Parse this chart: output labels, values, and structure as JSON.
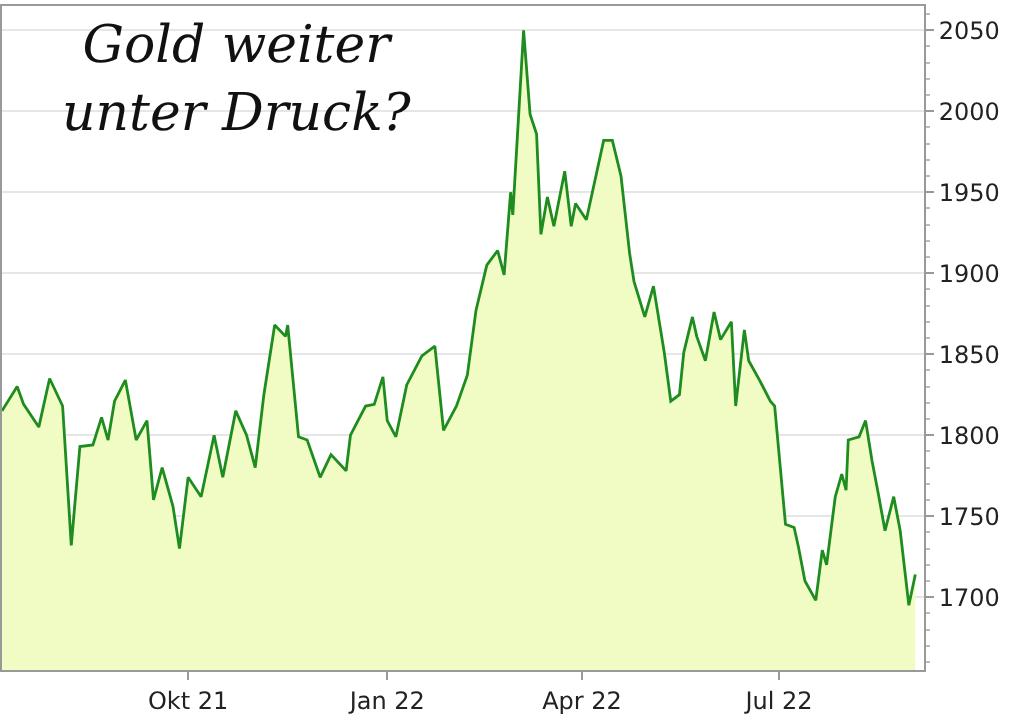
{
  "chart_data": {
    "type": "area",
    "title": "Gold weiter unter Druck?",
    "x": [
      "2021-07-07",
      "2021-07-14",
      "2021-07-17",
      "2021-07-24",
      "2021-07-29",
      "2021-08-04",
      "2021-08-08",
      "2021-08-12",
      "2021-08-18",
      "2021-08-22",
      "2021-08-25",
      "2021-08-28",
      "2021-09-02",
      "2021-09-07",
      "2021-09-12",
      "2021-09-15",
      "2021-09-19",
      "2021-09-24",
      "2021-09-27",
      "2021-10-01",
      "2021-10-07",
      "2021-10-13",
      "2021-10-17",
      "2021-10-23",
      "2021-10-28",
      "2021-11-01",
      "2021-11-05",
      "2021-11-10",
      "2021-11-15",
      "2021-11-16",
      "2021-11-21",
      "2021-11-25",
      "2021-12-01",
      "2021-12-06",
      "2021-12-13",
      "2021-12-15",
      "2021-12-22",
      "2021-12-26",
      "2021-12-30",
      "2022-01-01",
      "2022-01-05",
      "2022-01-10",
      "2022-01-17",
      "2022-01-23",
      "2022-01-27",
      "2022-02-02",
      "2022-02-07",
      "2022-02-11",
      "2022-02-16",
      "2022-02-21",
      "2022-02-24",
      "2022-02-27",
      "2022-02-28",
      "2022-03-05",
      "2022-03-08",
      "2022-03-11",
      "2022-03-13",
      "2022-03-16",
      "2022-03-19",
      "2022-03-24",
      "2022-03-27",
      "2022-03-29",
      "2022-04-03",
      "2022-04-11",
      "2022-04-15",
      "2022-04-19",
      "2022-04-23",
      "2022-04-25",
      "2022-04-30",
      "2022-05-04",
      "2022-05-09",
      "2022-05-12",
      "2022-05-16",
      "2022-05-18",
      "2022-05-22",
      "2022-05-24",
      "2022-05-28",
      "2022-06-01",
      "2022-06-04",
      "2022-06-09",
      "2022-06-11",
      "2022-06-15",
      "2022-06-17",
      "2022-06-22",
      "2022-06-27",
      "2022-06-29",
      "2022-07-04",
      "2022-07-08",
      "2022-07-10",
      "2022-07-13",
      "2022-07-18",
      "2022-07-21",
      "2022-07-23",
      "2022-07-27",
      "2022-07-30",
      "2022-08-01",
      "2022-08-02",
      "2022-08-07",
      "2022-08-10",
      "2022-08-13",
      "2022-08-16",
      "2022-08-19",
      "2022-08-23",
      "2022-08-26",
      "2022-08-30",
      "2022-09-02"
    ],
    "series": [
      {
        "color": "#1e8c1e",
        "values": [
          1815,
          1830,
          1819,
          1805,
          1835,
          1818,
          1732,
          1793,
          1794,
          1811,
          1797,
          1821,
          1834,
          1797,
          1809,
          1760,
          1780,
          1756,
          1730,
          1774,
          1762,
          1800,
          1774,
          1815,
          1800,
          1780,
          1825,
          1868,
          1861,
          1868,
          1799,
          1797,
          1774,
          1788,
          1778,
          1800,
          1818,
          1819,
          1836,
          1809,
          1799,
          1831,
          1849,
          1855,
          1803,
          1818,
          1837,
          1877,
          1905,
          1914,
          1899,
          1950,
          1936,
          2050,
          1998,
          1986,
          1924,
          1947,
          1929,
          1963,
          1929,
          1943,
          1933,
          1982,
          1982,
          1960,
          1912,
          1895,
          1873,
          1892,
          1851,
          1821,
          1825,
          1851,
          1873,
          1861,
          1846,
          1876,
          1859,
          1870,
          1818,
          1865,
          1846,
          1834,
          1821,
          1818,
          1745,
          1743,
          1731,
          1710,
          1698,
          1729,
          1720,
          1762,
          1776,
          1766,
          1797,
          1799,
          1809,
          1784,
          1763,
          1741,
          1762,
          1741,
          1695,
          1714
        ]
      }
    ],
    "xlim": [
      "2021-07-07",
      "2022-09-06"
    ],
    "xticks": [
      {
        "value": "2021-10-01",
        "label": "Okt 21"
      },
      {
        "value": "2022-01-01",
        "label": "Jan 22"
      },
      {
        "value": "2022-04-01",
        "label": "Apr 22"
      },
      {
        "value": "2022-07-01",
        "label": "Jul 22"
      }
    ],
    "ylim": [
      1655,
      2065
    ],
    "yticks": [
      1700,
      1750,
      1800,
      1850,
      1900,
      1950,
      2000,
      2050
    ],
    "grid": "y"
  }
}
